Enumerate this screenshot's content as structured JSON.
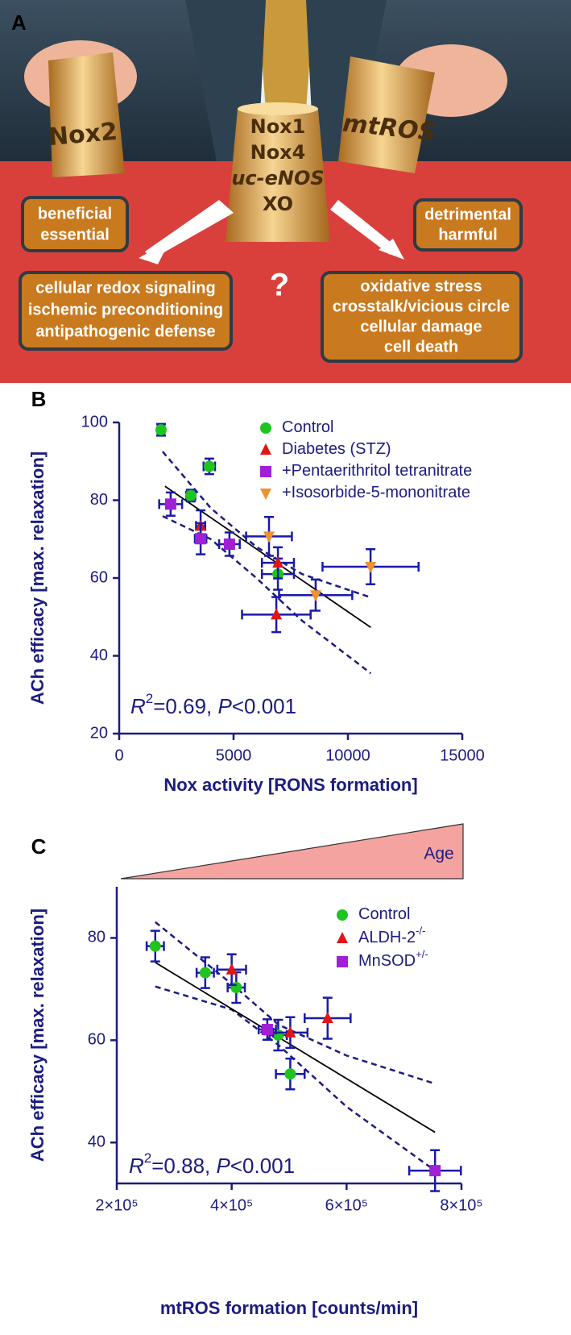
{
  "panel_a": {
    "label": "A",
    "cup_left": "Nox2",
    "cup_right": "mtROS",
    "cup_center": [
      "Nox1",
      "Nox4",
      "uc-eNOS",
      "XO"
    ],
    "box_beneficial": [
      "beneficial",
      "essential"
    ],
    "box_detrimental": [
      "detrimental",
      "harmful"
    ],
    "box_left": [
      "cellular redox signaling",
      "ischemic preconditioning",
      "antipathogenic defense"
    ],
    "box_right": [
      "oxidative stress",
      "crosstalk/vicious circle",
      "cellular damage",
      "cell death"
    ],
    "question": "?"
  },
  "chart_data": [
    {
      "type": "scatter",
      "panel_label": "B",
      "y_label": "ACh efficacy [max. relaxation]",
      "x_label": "Nox activity [RONS formation]",
      "xlim": [
        0,
        15000
      ],
      "xticks": [
        0,
        5000,
        10000,
        15000
      ],
      "ylim": [
        20,
        100
      ],
      "yticks": [
        20,
        40,
        60,
        80,
        100
      ],
      "grid": false,
      "annotation": [
        "R",
        "2",
        "=0.69, ",
        "P",
        "<0.001"
      ],
      "series": [
        {
          "name": "Control",
          "color": "#1fc41f",
          "marker": "circle",
          "x": [
            1830,
            3130,
            3940,
            6940
          ],
          "values": [
            98.1,
            81.2,
            88.7,
            61
          ],
          "yerr": [
            1.5,
            1.5,
            2,
            4
          ],
          "xerr": [
            150,
            200,
            250,
            700
          ]
        },
        {
          "name": "Diabetes (STZ)",
          "color": "#e01515",
          "marker": "triangle",
          "x": [
            3560,
            6940,
            6870
          ],
          "values": [
            73.4,
            63.9,
            50.6
          ],
          "yerr": [
            4,
            4,
            4.5
          ],
          "xerr": [
            200,
            700,
            1500
          ]
        },
        {
          "name": "+Pentaerithritol tetranitrate",
          "color": "#a21fd6",
          "marker": "square",
          "x": [
            2250,
            3560,
            4820
          ],
          "values": [
            79,
            70.1,
            68.7
          ],
          "yerr": [
            3,
            4,
            3
          ],
          "xerr": [
            500,
            250,
            450
          ]
        },
        {
          "name": "+Isosorbide-5-mononitrate",
          "color": "#f0902f",
          "marker": "triangle-down",
          "x": [
            6550,
            8590,
            10990
          ],
          "values": [
            70.7,
            55.6,
            62.9
          ],
          "yerr": [
            5,
            4,
            4.5
          ],
          "xerr": [
            1000,
            1600,
            2100
          ]
        }
      ],
      "fit": {
        "x": [
          2000,
          11000
        ],
        "y": [
          83.6,
          47.3
        ]
      },
      "ci_upper": {
        "x": [
          1900,
          4000,
          6000,
          8000,
          11000
        ],
        "y": [
          92.5,
          78,
          68,
          61,
          55
        ]
      },
      "ci_lower": {
        "x": [
          1900,
          4000,
          6000,
          8000,
          11000
        ],
        "y": [
          75.9,
          70,
          60,
          49,
          35.5
        ]
      }
    },
    {
      "type": "scatter",
      "panel_label": "C",
      "y_label": "ACh efficacy [max. relaxation]",
      "x_label": "mtROS formation [counts/min]",
      "gradient_label": "Age",
      "xlim": [
        200000,
        800000
      ],
      "xticks": [
        {
          "value": 200000,
          "label": "2×10⁵"
        },
        {
          "value": 400000,
          "label": "4×10⁵"
        },
        {
          "value": 600000,
          "label": "6×10⁵"
        },
        {
          "value": 800000,
          "label": "8×10⁵"
        }
      ],
      "ylim": [
        32,
        90
      ],
      "yticks": [
        40,
        60,
        80
      ],
      "grid": false,
      "annotation": [
        "R",
        "2",
        "=0.88, ",
        "P",
        "<0.001"
      ],
      "series": [
        {
          "name": "Control",
          "color": "#1fc41f",
          "marker": "circle",
          "x": [
            267000,
            354000,
            408000,
            481000,
            502000
          ],
          "values": [
            78.4,
            73.2,
            70.3,
            61,
            53.4
          ],
          "yerr": [
            3,
            3,
            3,
            3,
            3
          ],
          "xerr": [
            15000,
            15000,
            15000,
            15000,
            25000
          ]
        },
        {
          "name": "ALDH-2",
          "name_sup": "-/-",
          "color": "#e01515",
          "marker": "triangle",
          "x": [
            400000,
            502000,
            567000
          ],
          "values": [
            73.8,
            61.5,
            64.3
          ],
          "yerr": [
            3,
            3,
            4
          ],
          "xerr": [
            25000,
            30000,
            40000
          ]
        },
        {
          "name": "MnSOD",
          "name_sup": "+/-",
          "color": "#a21fd6",
          "marker": "square",
          "x": [
            462000,
            754000
          ],
          "values": [
            62.1,
            34.5
          ],
          "yerr": [
            2,
            4
          ],
          "xerr": [
            15000,
            45000
          ]
        }
      ],
      "fit": {
        "x": [
          267000,
          754000
        ],
        "y": [
          75.2,
          42
        ]
      },
      "ci_upper": {
        "x": [
          267000,
          400000,
          482000,
          600000,
          754000
        ],
        "y": [
          83.1,
          71,
          63,
          57,
          51.5
        ]
      },
      "ci_lower": {
        "x": [
          267000,
          400000,
          482000,
          600000,
          754000
        ],
        "y": [
          70.5,
          66,
          59,
          47,
          34.5
        ]
      }
    }
  ]
}
